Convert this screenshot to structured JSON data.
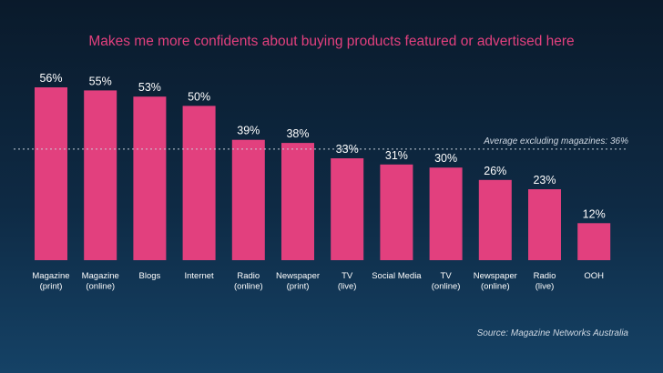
{
  "chart_data": {
    "type": "bar",
    "title": "Makes me more confidents about buying products featured or advertised here",
    "categories": [
      [
        "Magazine",
        "(print)"
      ],
      [
        "Magazine",
        "(online)"
      ],
      [
        "Blogs"
      ],
      [
        "Internet"
      ],
      [
        "Radio",
        "(online)"
      ],
      [
        "Newspaper",
        "(print)"
      ],
      [
        "TV",
        "(live)"
      ],
      [
        "Social Media"
      ],
      [
        "TV",
        "(online)"
      ],
      [
        "Newspaper",
        "(online)"
      ],
      [
        "Radio",
        "(live)"
      ],
      [
        "OOH"
      ]
    ],
    "values": [
      56,
      55,
      53,
      50,
      39,
      38,
      33,
      31,
      30,
      26,
      23,
      12
    ],
    "value_labels": [
      "56%",
      "55%",
      "53%",
      "50%",
      "39%",
      "38%",
      "33%",
      "31%",
      "30%",
      "26%",
      "23%",
      "12%"
    ],
    "reference_line": {
      "value": 36,
      "label": "Average excluding magazines: 36%"
    },
    "ylim": [
      0,
      56
    ],
    "xlabel": "",
    "ylabel": "",
    "grid": false,
    "source": "Source: Magazine Networks Australia",
    "colors": {
      "bar": "#e2407e",
      "title": "#e2407e",
      "text": "#ffffff",
      "muted": "#cfd8e3"
    }
  }
}
